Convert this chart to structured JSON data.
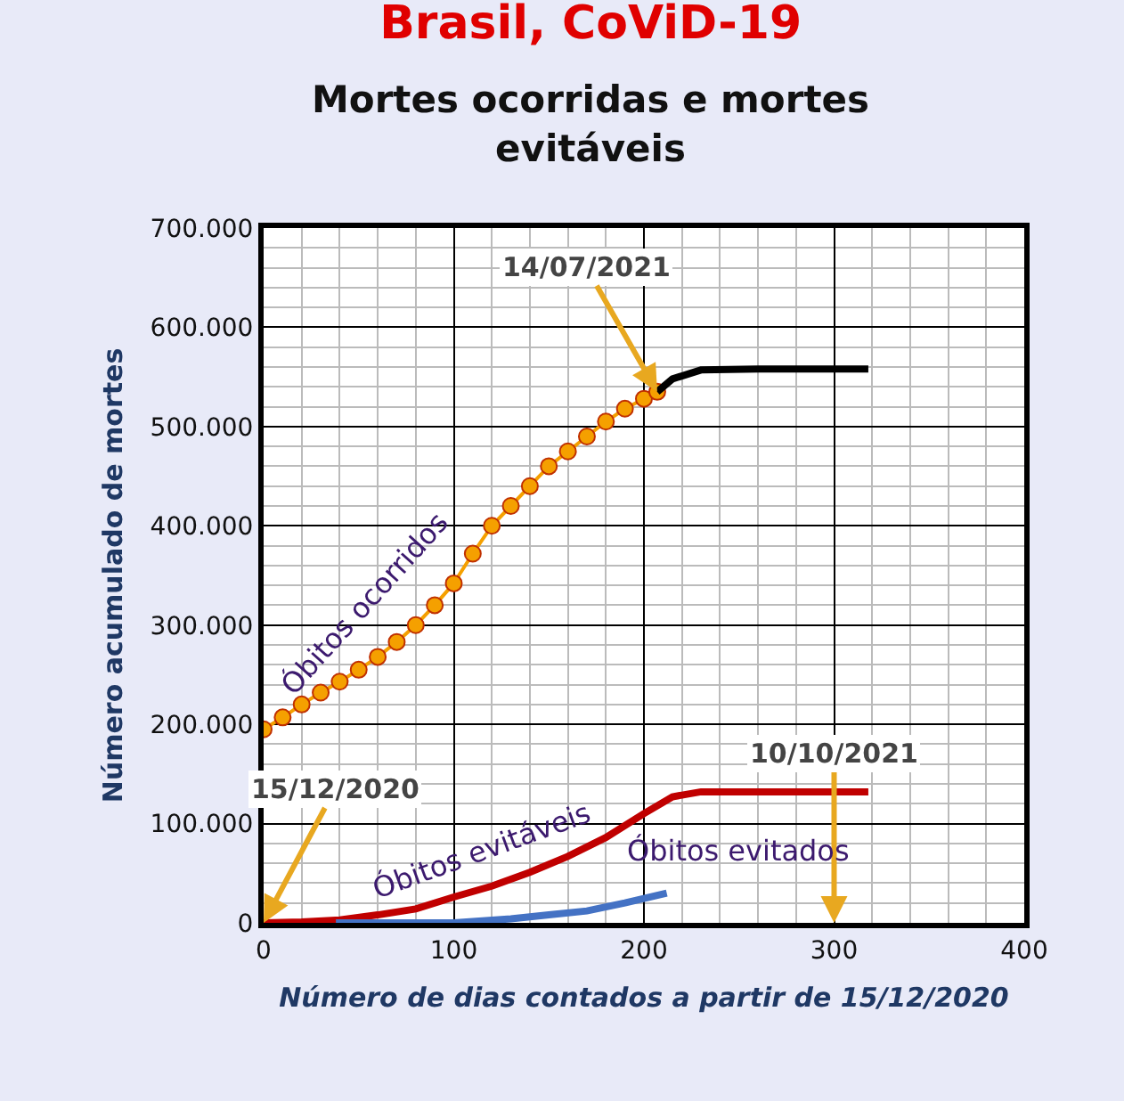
{
  "chart_data": {
    "type": "line",
    "title": "Brasil, CoViD-19",
    "subtitle": "Mortes ocorridas e mortes evitáveis",
    "xlabel": "Número de dias contados a partir de 15/12/2020",
    "ylabel": "Número acumulado de mortes",
    "xlim": [
      0,
      400
    ],
    "xticks": [
      0,
      100,
      200,
      300,
      400
    ],
    "ylim": [
      0,
      700000
    ],
    "yticks": [
      {
        "value": 0,
        "label": "0"
      },
      {
        "value": 100000,
        "label": "100.000"
      },
      {
        "value": 200000,
        "label": "200.000"
      },
      {
        "value": 300000,
        "label": "300.000"
      },
      {
        "value": 400000,
        "label": "400.000"
      },
      {
        "value": 500000,
        "label": "500.000"
      },
      {
        "value": 600000,
        "label": "600.000"
      },
      {
        "value": 700000,
        "label": "700.000"
      }
    ],
    "grid": true,
    "legend": false,
    "series": [
      {
        "name": "Óbitos ocorridos",
        "color": "#f5a000",
        "marker": "circle",
        "x": [
          0,
          10,
          20,
          30,
          40,
          50,
          60,
          70,
          80,
          90,
          100,
          110,
          120,
          130,
          140,
          150,
          160,
          170,
          180,
          190,
          200,
          207
        ],
        "values": [
          195000,
          207000,
          220000,
          232000,
          243000,
          255000,
          268000,
          283000,
          300000,
          320000,
          342000,
          372000,
          400000,
          420000,
          440000,
          460000,
          475000,
          490000,
          505000,
          518000,
          528000,
          535000
        ]
      },
      {
        "color": "#000000",
        "marker": "none",
        "x": [
          207,
          215,
          230,
          260,
          318
        ],
        "values": [
          535000,
          548000,
          557000,
          558000,
          558000
        ]
      },
      {
        "name": "Óbitos evitáveis",
        "color": "#c00000",
        "marker": "none",
        "x": [
          0,
          20,
          40,
          60,
          80,
          100,
          120,
          140,
          160,
          180,
          200,
          215,
          230,
          260,
          318
        ],
        "values": [
          0,
          1000,
          3000,
          8000,
          14000,
          26000,
          37000,
          51000,
          67000,
          86000,
          110000,
          127000,
          132000,
          132000,
          132000
        ]
      },
      {
        "name": "Óbitos evitados",
        "color": "#4472c4",
        "marker": "none",
        "x": [
          38,
          100,
          130,
          150,
          170,
          190,
          212
        ],
        "values": [
          0,
          0,
          4000,
          8000,
          12000,
          20000,
          30000
        ]
      }
    ],
    "annotations": [
      {
        "text": "14/07/2021",
        "x": 207,
        "y": 535000
      },
      {
        "text": "15/12/2020",
        "x": 0,
        "y": 0
      },
      "10/10/2021"
    ]
  }
}
